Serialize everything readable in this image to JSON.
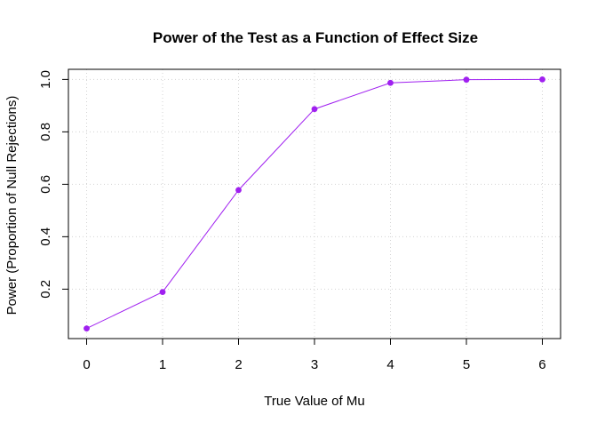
{
  "chart_data": {
    "type": "line",
    "title": "Power of the Test as a Function of Effect Size",
    "xlabel": "True Value of Mu",
    "ylabel": "Power (Proportion of Null Rejections)",
    "x": [
      0,
      1,
      2,
      3,
      4,
      5,
      6
    ],
    "series": [
      {
        "values": [
          0.05,
          0.189,
          0.578,
          0.887,
          0.987,
          0.999,
          1.0
        ],
        "color": "#A020F0"
      }
    ],
    "xlim": [
      -0.24,
      6.24
    ],
    "ylim": [
      0.0114,
      1.0386
    ],
    "xticks": [
      0,
      1,
      2,
      3,
      4,
      5,
      6
    ],
    "xtick_labels": [
      "0",
      "1",
      "2",
      "3",
      "4",
      "5",
      "6"
    ],
    "yticks": [
      0.2,
      0.4,
      0.6,
      0.8,
      1.0
    ],
    "ytick_labels": [
      "0.2",
      "0.4",
      "0.6",
      "0.8",
      "1.0"
    ],
    "grid": true,
    "grid_style": "dotted",
    "marker": "filled-circle"
  }
}
